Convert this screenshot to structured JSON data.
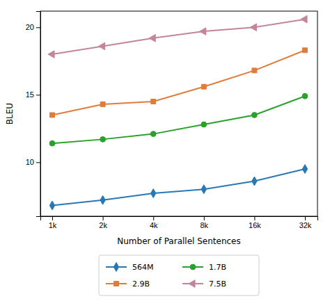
{
  "chart_data": {
    "type": "line",
    "xlabel": "Number of Parallel Sentences",
    "ylabel": "BLEU",
    "x": [
      1,
      2,
      4,
      8,
      16,
      32
    ],
    "series": [
      {
        "name": "564M",
        "color": "#2878b5",
        "marker": "diamond",
        "values": [
          6.8,
          7.2,
          7.7,
          8.0,
          8.6,
          9.5
        ]
      },
      {
        "name": "1.7B",
        "color": "#2ca02c",
        "marker": "circle",
        "values": [
          11.4,
          11.7,
          12.1,
          12.8,
          13.5,
          14.9
        ]
      },
      {
        "name": "2.9B",
        "color": "#e07b39",
        "marker": "square",
        "values": [
          13.5,
          14.3,
          14.5,
          15.6,
          16.8,
          18.3
        ]
      },
      {
        "name": "7.5B",
        "color": "#c4849a",
        "marker": "triangle-left",
        "values": [
          18.0,
          18.6,
          19.2,
          19.7,
          20.0,
          20.6
        ]
      }
    ],
    "log": "x",
    "xlim": [
      0.85,
      38
    ],
    "xticks": [
      {
        "value": 1,
        "label": "1k"
      },
      {
        "value": 2,
        "label": "2k"
      },
      {
        "value": 4,
        "label": "4k"
      },
      {
        "value": 8,
        "label": "8k"
      },
      {
        "value": 16,
        "label": "16k"
      },
      {
        "value": 32,
        "label": "32k"
      }
    ],
    "ylim": [
      6.0,
      21.2
    ],
    "yticks": [
      10,
      15,
      20
    ],
    "grid": false,
    "legend": "bottom"
  }
}
